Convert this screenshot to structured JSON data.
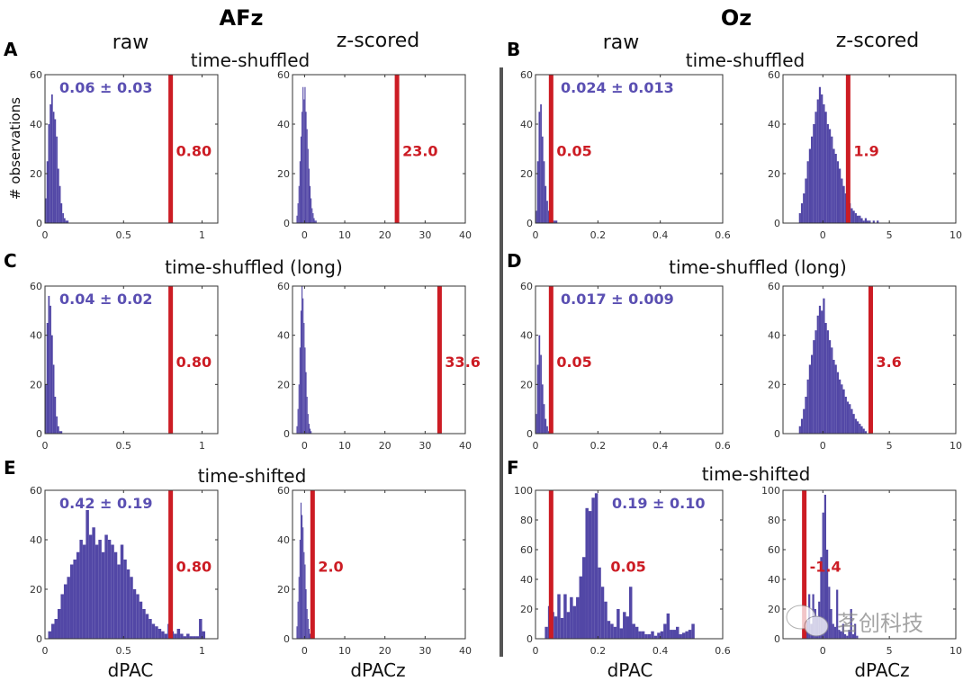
{
  "colors": {
    "bars": "#5247a6",
    "threshold": "#cc1c24",
    "stat_text": "#5a4fb2",
    "separator": "#555555"
  },
  "figure": {
    "electrodes": [
      "AFz",
      "Oz"
    ],
    "column_titles": [
      "raw",
      "z-scored",
      "raw",
      "z-scored"
    ],
    "panel_letters": [
      "A",
      "B",
      "C",
      "D",
      "E",
      "F"
    ],
    "row_titles": [
      "time-shuffled",
      "time-shuffled",
      "time-shuffled (long)",
      "time-shuffled (long)",
      "time-shifted",
      "time-shifted"
    ],
    "ylabel": "# observations",
    "xlabels": [
      "dPAC",
      "dPACz",
      "dPAC",
      "dPACz"
    ],
    "watermark": "茗创科技"
  },
  "chart_data": [
    {
      "type": "bar",
      "panel": "A-raw",
      "xlim": [
        0,
        1.1
      ],
      "ylim": [
        0,
        60
      ],
      "xticks": [
        "0",
        "0.5",
        "1"
      ],
      "xtick_vals": [
        0,
        0.5,
        1
      ],
      "yticks": [
        0,
        20,
        40,
        60
      ],
      "bin_start": 0,
      "bin_width": 0.01,
      "counts": [
        10,
        25,
        40,
        48,
        52,
        45,
        42,
        35,
        22,
        15,
        8,
        4,
        2,
        1,
        1
      ],
      "threshold": 0.8,
      "threshold_label": "0.80",
      "stat": "0.06 ± 0.03"
    },
    {
      "type": "bar",
      "panel": "A-z",
      "xlim": [
        -3,
        40
      ],
      "ylim": [
        0,
        60
      ],
      "xticks": [
        "0",
        "10",
        "20",
        "30",
        "40"
      ],
      "xtick_vals": [
        0,
        10,
        20,
        30,
        40
      ],
      "yticks": [
        0,
        20,
        40,
        60
      ],
      "bin_start": -2,
      "bin_width": 0.25,
      "counts": [
        3,
        8,
        15,
        25,
        35,
        45,
        55,
        50,
        55,
        45,
        38,
        30,
        22,
        15,
        10,
        6,
        4,
        2,
        1,
        1
      ],
      "threshold": 23.0,
      "threshold_label": "23.0",
      "stat": ""
    },
    {
      "type": "bar",
      "panel": "B-raw",
      "xlim": [
        0,
        0.6
      ],
      "ylim": [
        0,
        60
      ],
      "xticks": [
        "0",
        "0.2",
        "0.4",
        "0.6"
      ],
      "xtick_vals": [
        0,
        0.2,
        0.4,
        0.6
      ],
      "yticks": [
        0,
        20,
        40,
        60
      ],
      "bin_start": 0,
      "bin_width": 0.005,
      "counts": [
        5,
        25,
        45,
        48,
        35,
        25,
        15,
        9,
        5,
        3,
        2,
        1,
        1,
        1
      ],
      "threshold": 0.05,
      "threshold_label": "0.05",
      "stat": "0.024 ± 0.013"
    },
    {
      "type": "bar",
      "panel": "B-z",
      "xlim": [
        -3,
        10
      ],
      "ylim": [
        0,
        60
      ],
      "xticks": [
        "0",
        "5",
        "10"
      ],
      "xtick_vals": [
        0,
        5,
        10
      ],
      "yticks": [
        0,
        20,
        40,
        60
      ],
      "bin_start": -1.8,
      "bin_width": 0.15,
      "counts": [
        4,
        8,
        12,
        18,
        25,
        30,
        35,
        40,
        45,
        50,
        55,
        52,
        48,
        45,
        40,
        38,
        35,
        30,
        28,
        25,
        22,
        18,
        15,
        12,
        10,
        8,
        6,
        5,
        4,
        3,
        3,
        2,
        1,
        2,
        1,
        1,
        0,
        1,
        0,
        1
      ],
      "threshold": 1.9,
      "threshold_label": "1.9",
      "stat": ""
    },
    {
      "type": "bar",
      "panel": "C-raw",
      "xlim": [
        0,
        1.1
      ],
      "ylim": [
        0,
        60
      ],
      "xticks": [
        "0",
        "0.5",
        "1"
      ],
      "xtick_vals": [
        0,
        0.5,
        1
      ],
      "yticks": [
        0,
        20,
        40,
        60
      ],
      "bin_start": 0,
      "bin_width": 0.01,
      "counts": [
        20,
        45,
        56,
        52,
        40,
        28,
        15,
        7,
        3,
        1,
        1
      ],
      "threshold": 0.8,
      "threshold_label": "0.80",
      "stat": "0.04 ± 0.02"
    },
    {
      "type": "bar",
      "panel": "C-z",
      "xlim": [
        -3,
        40
      ],
      "ylim": [
        0,
        60
      ],
      "xticks": [
        "0",
        "10",
        "20",
        "30",
        "40"
      ],
      "xtick_vals": [
        0,
        10,
        20,
        30,
        40
      ],
      "yticks": [
        0,
        20,
        40,
        60
      ],
      "bin_start": -2,
      "bin_width": 0.25,
      "counts": [
        3,
        10,
        20,
        35,
        50,
        60,
        55,
        45,
        35,
        25,
        15,
        8,
        4,
        2,
        1
      ],
      "threshold": 33.6,
      "threshold_label": "33.6",
      "stat": ""
    },
    {
      "type": "bar",
      "panel": "D-raw",
      "xlim": [
        0,
        0.6
      ],
      "ylim": [
        0,
        60
      ],
      "xticks": [
        "0",
        "0.2",
        "0.4",
        "0.6"
      ],
      "xtick_vals": [
        0,
        0.2,
        0.4,
        0.6
      ],
      "yticks": [
        0,
        20,
        40,
        60
      ],
      "bin_start": 0,
      "bin_width": 0.005,
      "counts": [
        8,
        28,
        40,
        32,
        20,
        12,
        6,
        3,
        1,
        1
      ],
      "threshold": 0.05,
      "threshold_label": "0.05",
      "stat": "0.017 ± 0.009"
    },
    {
      "type": "bar",
      "panel": "D-z",
      "xlim": [
        -3,
        10
      ],
      "ylim": [
        0,
        60
      ],
      "xticks": [
        "0",
        "5",
        "10"
      ],
      "xtick_vals": [
        0,
        5,
        10
      ],
      "yticks": [
        0,
        20,
        40,
        60
      ],
      "bin_start": -1.8,
      "bin_width": 0.15,
      "counts": [
        3,
        6,
        10,
        15,
        22,
        28,
        32,
        38,
        42,
        48,
        52,
        50,
        55,
        45,
        42,
        38,
        35,
        30,
        28,
        25,
        22,
        20,
        18,
        15,
        13,
        12,
        10,
        8,
        6,
        5,
        4,
        3,
        2,
        1
      ],
      "threshold": 3.6,
      "threshold_label": "3.6",
      "stat": ""
    },
    {
      "type": "bar",
      "panel": "E-raw",
      "xlim": [
        0,
        1.1
      ],
      "ylim": [
        0,
        60
      ],
      "xticks": [
        "0",
        "0.5",
        "1"
      ],
      "xtick_vals": [
        0,
        0.5,
        1
      ],
      "yticks": [
        0,
        20,
        40,
        60
      ],
      "bin_start": 0.02,
      "bin_width": 0.02,
      "counts": [
        3,
        6,
        8,
        12,
        18,
        22,
        25,
        30,
        32,
        35,
        40,
        38,
        52,
        42,
        45,
        38,
        40,
        35,
        42,
        40,
        38,
        35,
        30,
        38,
        32,
        28,
        25,
        20,
        18,
        15,
        12,
        10,
        8,
        6,
        5,
        4,
        3,
        2,
        6,
        3,
        2,
        4,
        2,
        1,
        2,
        1,
        1,
        1,
        8,
        3
      ],
      "threshold": 0.8,
      "threshold_label": "0.80",
      "stat": "0.42 ± 0.19"
    },
    {
      "type": "bar",
      "panel": "E-z",
      "xlim": [
        -3,
        40
      ],
      "ylim": [
        0,
        60
      ],
      "xticks": [
        "0",
        "10",
        "20",
        "30",
        "40"
      ],
      "xtick_vals": [
        0,
        10,
        20,
        30,
        40
      ],
      "yticks": [
        0,
        20,
        40,
        60
      ],
      "bin_start": -2,
      "bin_width": 0.25,
      "counts": [
        5,
        15,
        25,
        40,
        55,
        50,
        45,
        35,
        30,
        20,
        12,
        8,
        4,
        2,
        1
      ],
      "threshold": 2.0,
      "threshold_label": "2.0",
      "stat": ""
    },
    {
      "type": "bar",
      "panel": "F-raw",
      "xlim": [
        0,
        0.6
      ],
      "ylim": [
        0,
        100
      ],
      "xticks": [
        "0",
        "0.2",
        "0.4",
        "0.6"
      ],
      "xtick_vals": [
        0,
        0.2,
        0.4,
        0.6
      ],
      "yticks": [
        0,
        20,
        40,
        60,
        80,
        100
      ],
      "bin_start": 0.03,
      "bin_width": 0.01,
      "counts": [
        8,
        22,
        18,
        15,
        30,
        14,
        30,
        18,
        28,
        22,
        28,
        42,
        55,
        88,
        86,
        95,
        98,
        48,
        35,
        25,
        12,
        10,
        8,
        20,
        7,
        18,
        15,
        35,
        10,
        8,
        5,
        5,
        3,
        3,
        5,
        2,
        4,
        5,
        10,
        17,
        6,
        6,
        8,
        3,
        4,
        5,
        6,
        10
      ],
      "threshold": 0.05,
      "threshold_label": "0.05",
      "stat": "0.19 ± 0.10"
    },
    {
      "type": "bar",
      "panel": "F-z",
      "xlim": [
        -3,
        10
      ],
      "ylim": [
        0,
        100
      ],
      "xticks": [
        "0",
        "5",
        "10"
      ],
      "xtick_vals": [
        0,
        5,
        10
      ],
      "yticks": [
        0,
        20,
        40,
        60,
        80,
        100
      ],
      "bin_start": -1.4,
      "bin_width": 0.15,
      "counts": [
        5,
        12,
        30,
        10,
        30,
        20,
        15,
        25,
        55,
        85,
        97,
        60,
        35,
        20,
        10,
        8,
        33,
        6,
        5,
        10,
        3,
        2,
        6,
        20,
        3,
        10,
        2
      ],
      "threshold": -1.4,
      "threshold_label": "-1.4",
      "stat": ""
    }
  ]
}
